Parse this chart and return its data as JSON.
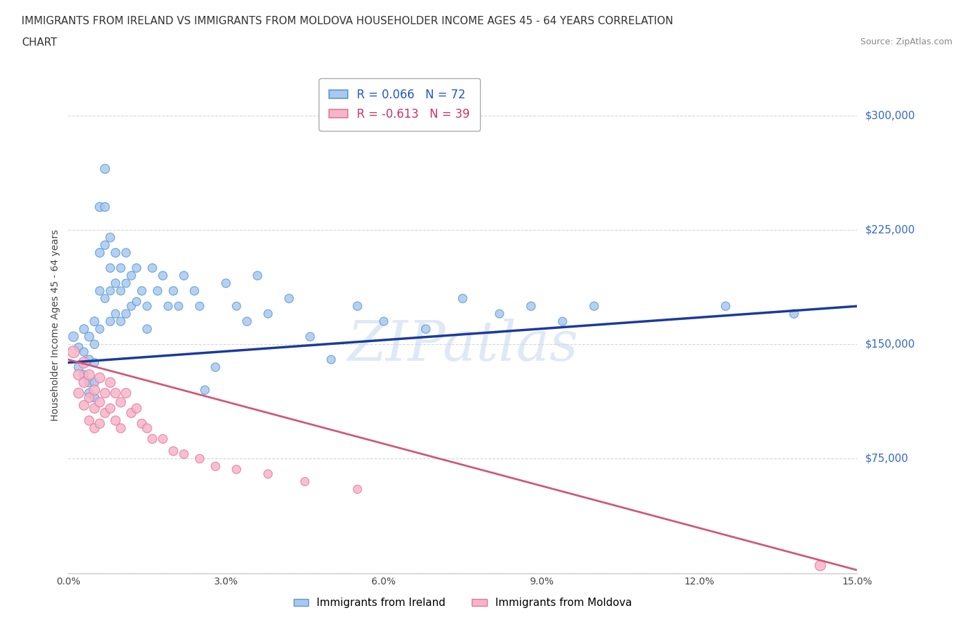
{
  "title_line1": "IMMIGRANTS FROM IRELAND VS IMMIGRANTS FROM MOLDOVA HOUSEHOLDER INCOME AGES 45 - 64 YEARS CORRELATION",
  "title_line2": "CHART",
  "source": "Source: ZipAtlas.com",
  "ylabel": "Householder Income Ages 45 - 64 years",
  "xmin": 0.0,
  "xmax": 0.15,
  "ymin": 0,
  "ymax": 325000,
  "yticks": [
    0,
    75000,
    150000,
    225000,
    300000
  ],
  "ytick_labels": [
    "",
    "$75,000",
    "$150,000",
    "$225,000",
    "$300,000"
  ],
  "xticks": [
    0.0,
    0.03,
    0.06,
    0.09,
    0.12,
    0.15
  ],
  "xtick_labels": [
    "0.0%",
    "3.0%",
    "6.0%",
    "9.0%",
    "12.0%",
    "15.0%"
  ],
  "ireland_color": "#aac8f0",
  "ireland_edge_color": "#5599d0",
  "moldova_color": "#f8b4c8",
  "moldova_edge_color": "#e07898",
  "ireland_line_color": "#1a3a9c",
  "moldova_line_color": "#d05878",
  "legend_ireland_label": "R = 0.066   N = 72",
  "legend_moldova_label": "R = -0.613   N = 39",
  "watermark_text": "ZIPatlas",
  "background_color": "#ffffff",
  "grid_color": "#cccccc",
  "ireland_line_x0": 0.0,
  "ireland_line_x1": 0.15,
  "ireland_line_y0": 138000,
  "ireland_line_y1": 175000,
  "moldova_line_x0": 0.0,
  "moldova_line_x1": 0.15,
  "moldova_line_y0": 140000,
  "moldova_line_y1": 2000,
  "ireland_scatter_x": [
    0.001,
    0.002,
    0.002,
    0.003,
    0.003,
    0.003,
    0.004,
    0.004,
    0.004,
    0.004,
    0.005,
    0.005,
    0.005,
    0.005,
    0.005,
    0.006,
    0.006,
    0.006,
    0.006,
    0.007,
    0.007,
    0.007,
    0.007,
    0.008,
    0.008,
    0.008,
    0.008,
    0.009,
    0.009,
    0.009,
    0.01,
    0.01,
    0.01,
    0.011,
    0.011,
    0.011,
    0.012,
    0.012,
    0.013,
    0.013,
    0.014,
    0.015,
    0.015,
    0.016,
    0.017,
    0.018,
    0.019,
    0.02,
    0.021,
    0.022,
    0.024,
    0.025,
    0.026,
    0.028,
    0.03,
    0.032,
    0.034,
    0.036,
    0.038,
    0.042,
    0.046,
    0.05,
    0.055,
    0.06,
    0.068,
    0.075,
    0.082,
    0.088,
    0.094,
    0.1,
    0.125,
    0.138
  ],
  "ireland_scatter_y": [
    155000,
    148000,
    135000,
    160000,
    145000,
    130000,
    155000,
    140000,
    125000,
    118000,
    165000,
    150000,
    138000,
    125000,
    115000,
    240000,
    210000,
    185000,
    160000,
    265000,
    240000,
    215000,
    180000,
    220000,
    200000,
    185000,
    165000,
    210000,
    190000,
    170000,
    200000,
    185000,
    165000,
    210000,
    190000,
    170000,
    195000,
    175000,
    200000,
    178000,
    185000,
    175000,
    160000,
    200000,
    185000,
    195000,
    175000,
    185000,
    175000,
    195000,
    185000,
    175000,
    120000,
    135000,
    190000,
    175000,
    165000,
    195000,
    170000,
    180000,
    155000,
    140000,
    175000,
    165000,
    160000,
    180000,
    170000,
    175000,
    165000,
    175000,
    175000,
    170000
  ],
  "moldova_scatter_x": [
    0.001,
    0.002,
    0.002,
    0.003,
    0.003,
    0.003,
    0.004,
    0.004,
    0.004,
    0.005,
    0.005,
    0.005,
    0.006,
    0.006,
    0.006,
    0.007,
    0.007,
    0.008,
    0.008,
    0.009,
    0.009,
    0.01,
    0.01,
    0.011,
    0.012,
    0.013,
    0.014,
    0.015,
    0.016,
    0.018,
    0.02,
    0.022,
    0.025,
    0.028,
    0.032,
    0.038,
    0.045,
    0.055,
    0.143
  ],
  "moldova_scatter_y": [
    145000,
    130000,
    118000,
    138000,
    125000,
    110000,
    130000,
    115000,
    100000,
    120000,
    108000,
    95000,
    128000,
    112000,
    98000,
    118000,
    105000,
    125000,
    108000,
    118000,
    100000,
    112000,
    95000,
    118000,
    105000,
    108000,
    98000,
    95000,
    88000,
    88000,
    80000,
    78000,
    75000,
    70000,
    68000,
    65000,
    60000,
    55000,
    5000
  ],
  "ireland_scatter_sizes": [
    100,
    80,
    90,
    85,
    75,
    85,
    90,
    80,
    85,
    90,
    85,
    80,
    75,
    80,
    85,
    90,
    85,
    80,
    75,
    90,
    85,
    80,
    75,
    85,
    80,
    75,
    80,
    85,
    80,
    75,
    80,
    75,
    80,
    80,
    75,
    80,
    80,
    75,
    80,
    75,
    80,
    75,
    80,
    80,
    80,
    80,
    75,
    80,
    75,
    80,
    80,
    75,
    80,
    80,
    80,
    75,
    80,
    80,
    75,
    80,
    80,
    75,
    80,
    75,
    80,
    80,
    75,
    80,
    75,
    80,
    80,
    80
  ],
  "moldova_scatter_sizes": [
    150,
    120,
    110,
    130,
    110,
    100,
    115,
    100,
    95,
    110,
    100,
    95,
    110,
    100,
    95,
    100,
    95,
    105,
    95,
    100,
    95,
    100,
    90,
    100,
    95,
    95,
    90,
    90,
    88,
    85,
    85,
    82,
    80,
    80,
    78,
    78,
    75,
    75,
    120
  ]
}
